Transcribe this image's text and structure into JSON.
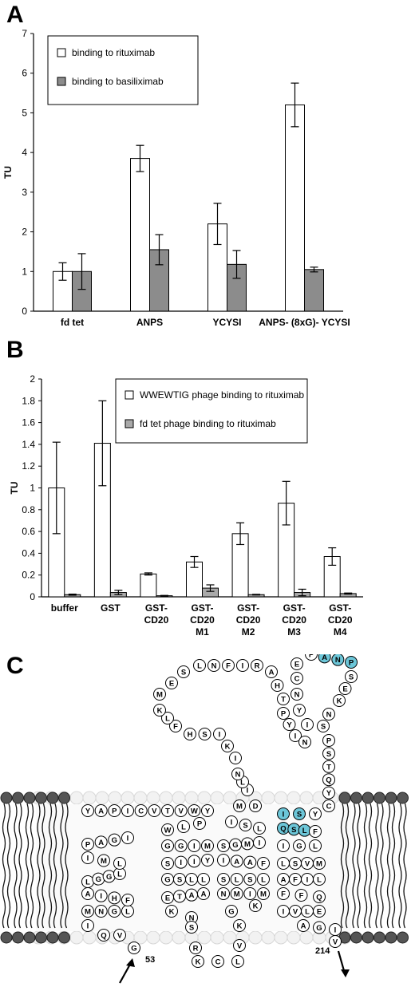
{
  "panels": {
    "a": {
      "letter": "A"
    },
    "b": {
      "letter": "B"
    },
    "c": {
      "letter": "C"
    }
  },
  "colors": {
    "rituximab_bar": "#ffffff",
    "basiliximab_bar": "#8c8c8c",
    "fdtet_bar": "#a9a9a9",
    "cys": "#f0a81e",
    "epitope": "#6cc6d8",
    "membrane_head": "#555555"
  },
  "chart_data": [
    {
      "type": "bar",
      "panel": "A",
      "title": "",
      "ylabel": "TU",
      "xlabel": "",
      "ylim": [
        0,
        7
      ],
      "yticks": [
        0,
        1,
        2,
        3,
        4,
        5,
        6,
        7
      ],
      "grid": false,
      "legend": "top-left",
      "categories": [
        "fd tet",
        "ANPS",
        "YCYSI",
        "ANPS- (8xG)- YCYSI"
      ],
      "series": [
        {
          "name": "binding to rituximab",
          "values": [
            1.0,
            3.85,
            2.2,
            5.2
          ],
          "err": [
            0.22,
            0.33,
            0.52,
            0.55
          ]
        },
        {
          "name": "binding to basiliximab",
          "values": [
            1.0,
            1.55,
            1.18,
            1.05
          ],
          "err": [
            0.45,
            0.38,
            0.35,
            0.06
          ]
        }
      ]
    },
    {
      "type": "bar",
      "panel": "B",
      "title": "",
      "ylabel": "TU",
      "xlabel": "",
      "ylim": [
        0,
        2
      ],
      "yticks": [
        "0",
        "0.2",
        "0.4",
        "0.6",
        "0.8",
        "1",
        "1.2",
        "1.4",
        "1.6",
        "1.8",
        "2"
      ],
      "grid": false,
      "legend": "top-right",
      "categories": [
        [
          "buffer"
        ],
        [
          "GST"
        ],
        [
          "GST-",
          "CD20"
        ],
        [
          "GST-",
          "CD20",
          "M1"
        ],
        [
          "GST-",
          "CD20",
          "M2"
        ],
        [
          "GST-",
          "CD20",
          "M3"
        ],
        [
          "GST-",
          "CD20",
          "M4"
        ]
      ],
      "series": [
        {
          "name": "WWEWTIG phage binding to rituximab",
          "values": [
            1.0,
            1.41,
            0.21,
            0.32,
            0.58,
            0.86,
            0.37
          ],
          "err": [
            0.42,
            0.39,
            0.01,
            0.05,
            0.1,
            0.2,
            0.08
          ]
        },
        {
          "name": "fd tet phage binding to rituximab",
          "values": [
            0.02,
            0.04,
            0.01,
            0.08,
            0.02,
            0.04,
            0.03
          ],
          "err": [
            0.005,
            0.02,
            0.003,
            0.03,
            0.003,
            0.03,
            0.005
          ]
        }
      ]
    }
  ],
  "topology": {
    "start_label": "53",
    "end_label": "214",
    "residues": [
      "G",
      "V",
      "Q",
      "I",
      "M",
      "N",
      "G",
      "L",
      "F",
      "H",
      "I",
      "A",
      "L",
      "G",
      "G",
      "L",
      "L",
      "M",
      "I",
      "P",
      "A",
      "G",
      "I",
      "Y",
      "A",
      "P",
      "I",
      "C",
      "V",
      "T",
      "V",
      "W",
      "Y",
      "P",
      "L",
      "W",
      "G",
      "G",
      "I",
      "M",
      "Y",
      "I",
      "I",
      "S",
      "G",
      "S",
      "L",
      "L",
      "A",
      "A",
      "T",
      "E",
      "K",
      "N",
      "S",
      "R",
      "K",
      "C",
      "L",
      "V",
      "K",
      "G",
      "K",
      "M",
      "I",
      "M",
      "N",
      "S",
      "L",
      "S",
      "L",
      "F",
      "A",
      "A",
      "I",
      "S",
      "G",
      "M",
      "I",
      "L",
      "S",
      "I",
      "M",
      "D",
      "I",
      "L",
      "N",
      "I",
      "K",
      "I",
      "S",
      "H",
      "F",
      "L",
      "K",
      "M",
      "E",
      "S",
      "L",
      "N",
      "F",
      "I",
      "R",
      "A",
      "H",
      "T",
      "P",
      "Y",
      "I",
      "N",
      "I",
      "Y",
      "N",
      "C",
      "E",
      "P",
      "A",
      "N",
      "P",
      "S",
      "E",
      "K",
      "N",
      "S",
      "P",
      "S",
      "T",
      "Q",
      "Y",
      "C",
      "Y",
      "S",
      "I",
      "Q",
      "S",
      "L",
      "F",
      "L",
      "G",
      "I",
      "L",
      "S",
      "V",
      "M",
      "L",
      "I",
      "F",
      "A",
      "F",
      "F",
      "Q",
      "E",
      "L",
      "V",
      "I",
      "A",
      "G",
      "I",
      "V",
      "E",
      "N"
    ]
  }
}
